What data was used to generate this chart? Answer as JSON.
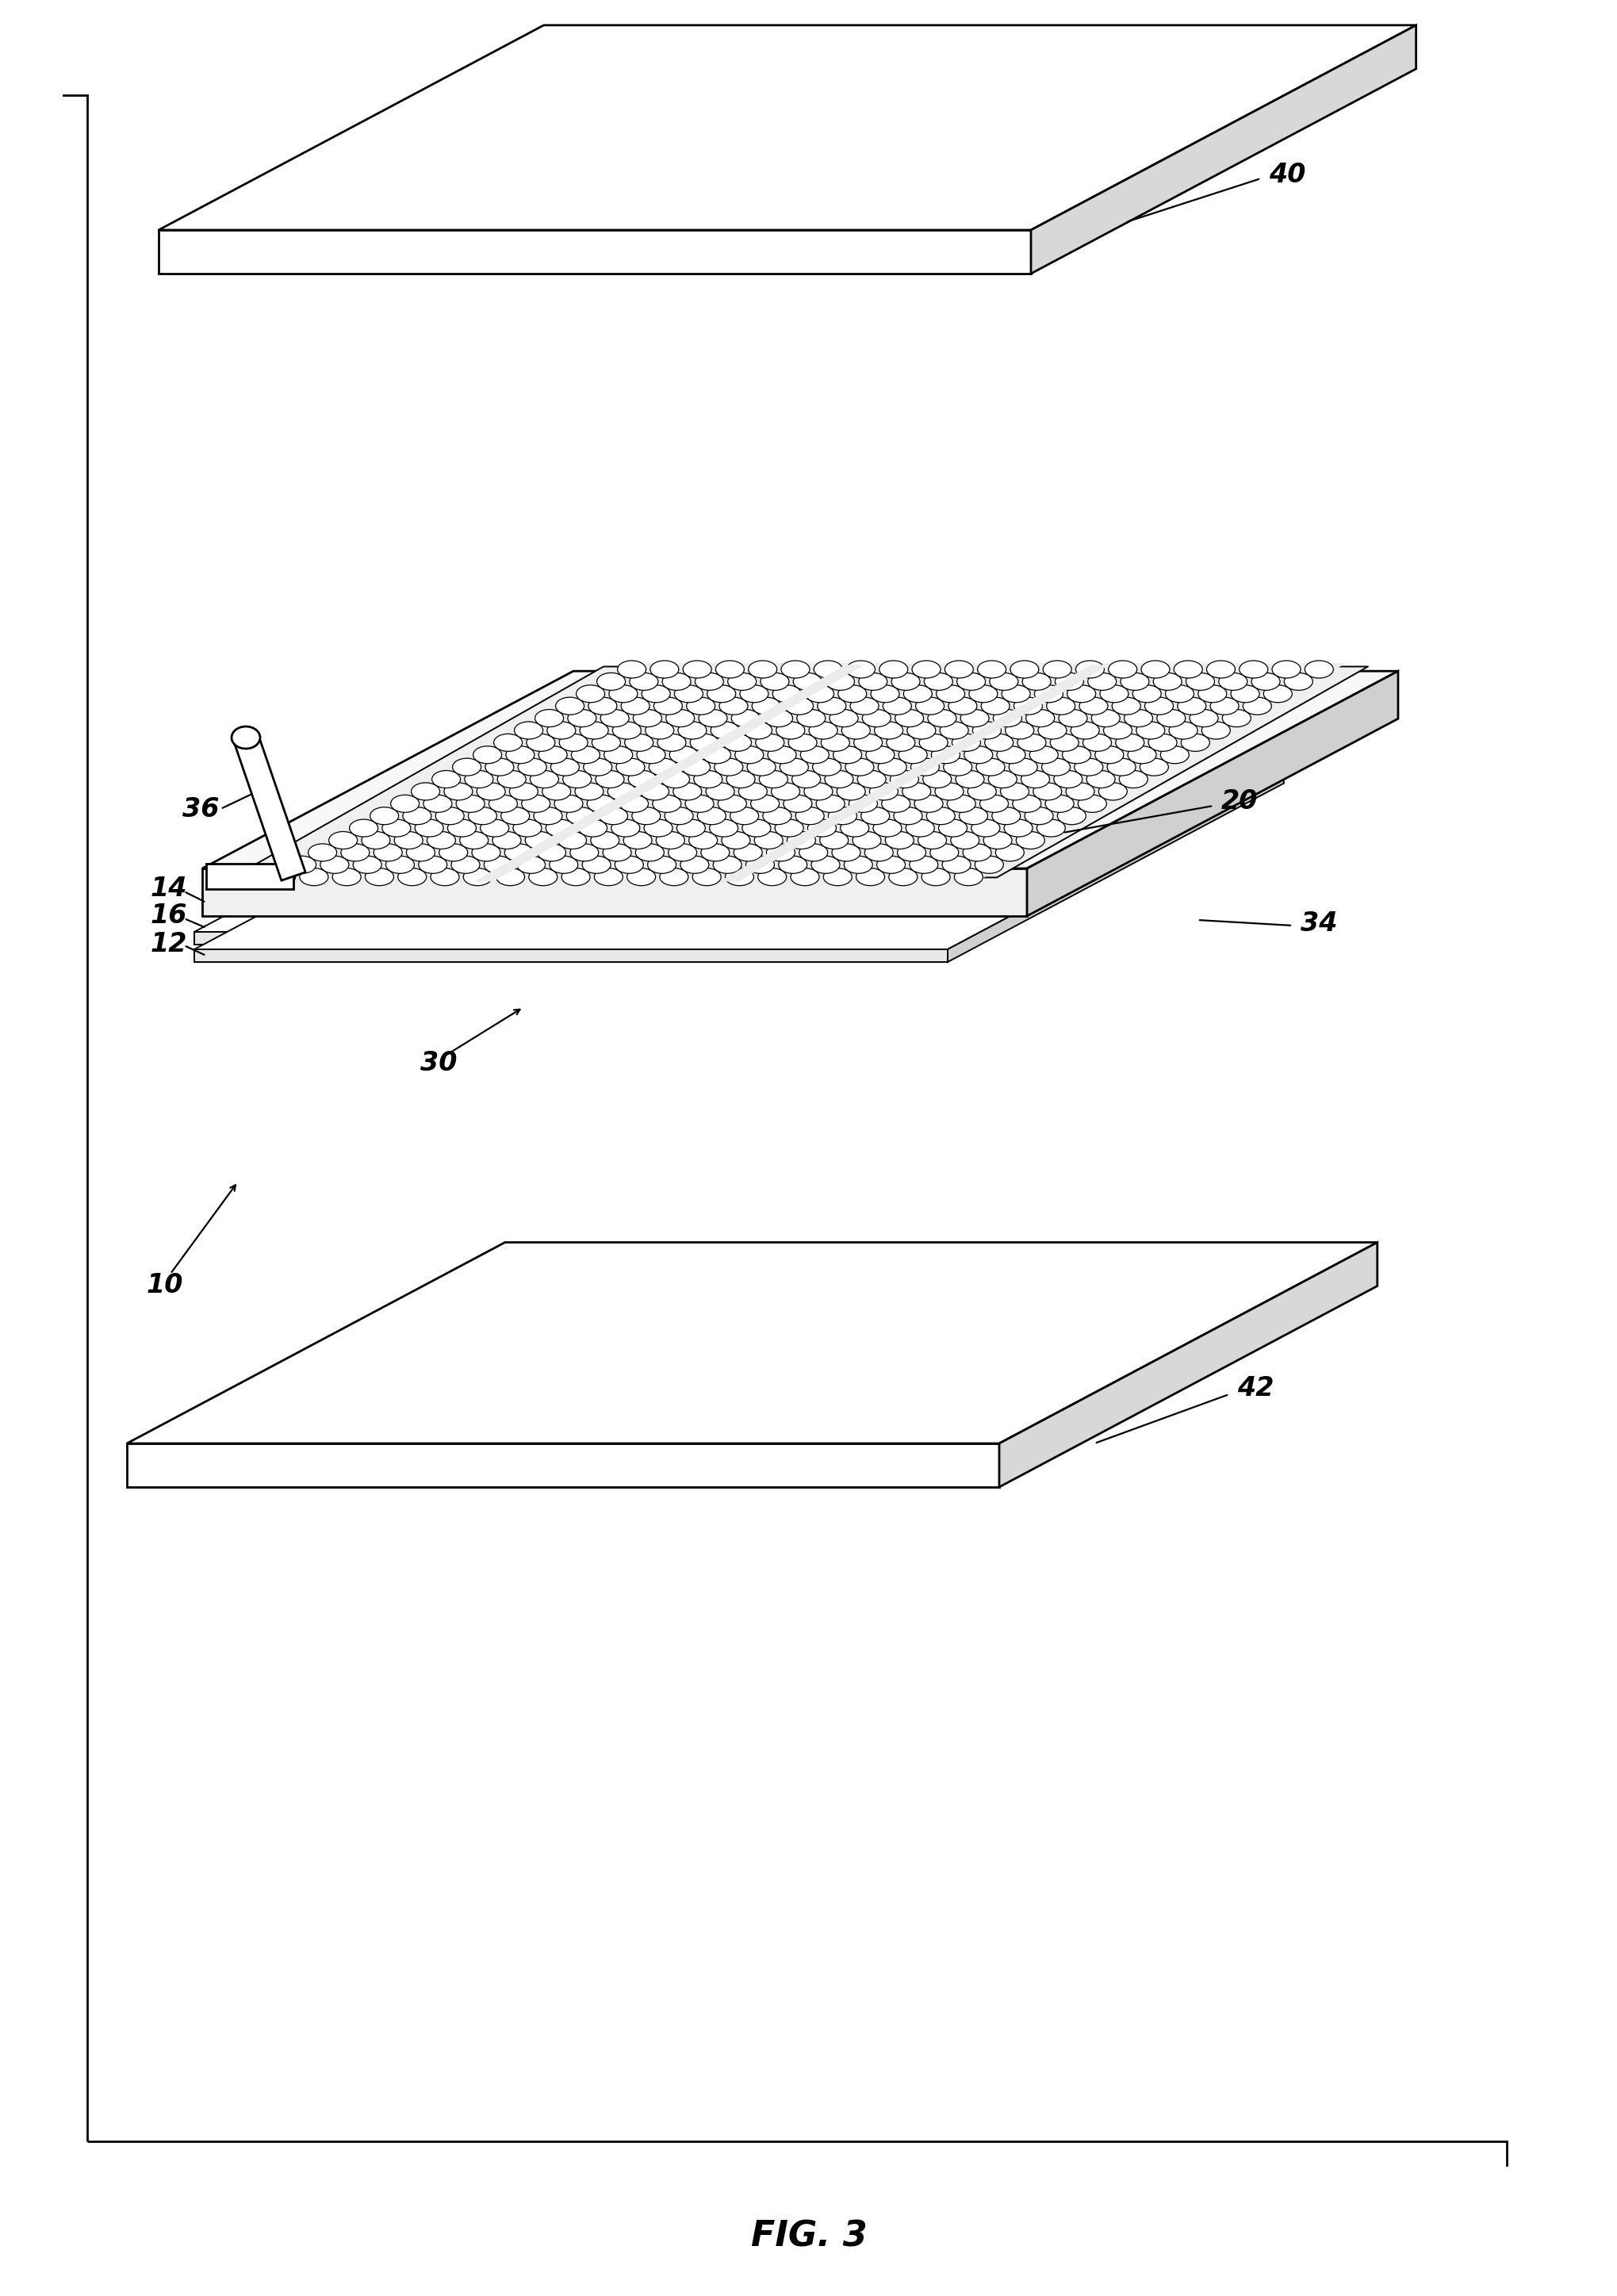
{
  "background_color": "#ffffff",
  "line_color": "#000000",
  "fig_label": "FIG. 3",
  "fig_label_fontsize": 32,
  "ref_label_fontsize": 24,
  "lw_main": 2.0,
  "lw_thin": 1.4,
  "lw_hole": 0.9,
  "plate_fill": "#ffffff",
  "plate_side_fill": "#e0e0e0",
  "hole_fill": "#ffffff",
  "hole_edge": "#000000",
  "tray_inner_fill": "#f5f5f5",
  "axis_lw": 2.0
}
